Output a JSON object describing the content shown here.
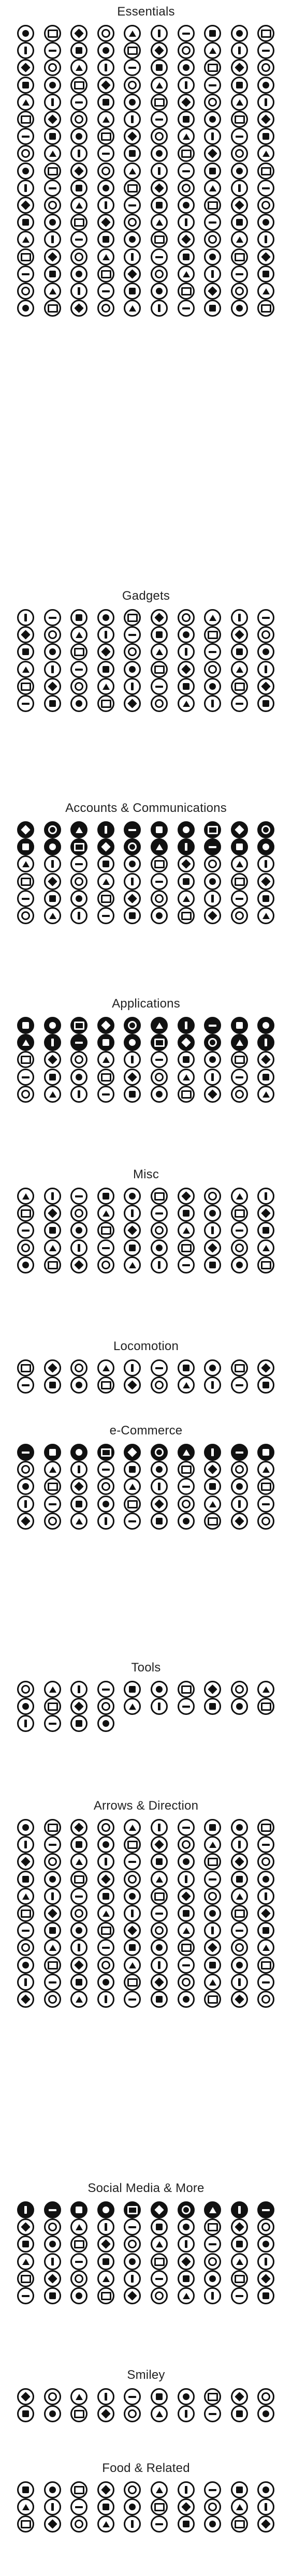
{
  "page": {
    "background": "#ffffff",
    "ink": "#111111"
  },
  "sections": [
    {
      "title": "Essentials",
      "columns": 10,
      "count": 170
    },
    {
      "title": "Gadgets",
      "columns": 10,
      "count": 60
    },
    {
      "title": "Accounts & Communications",
      "columns": 10,
      "count": 60
    },
    {
      "title": "Applications",
      "columns": 10,
      "count": 50
    },
    {
      "title": "Misc",
      "columns": 10,
      "count": 50
    },
    {
      "title": "Locomotion",
      "columns": 10,
      "count": 20
    },
    {
      "title": "e-Commerce",
      "columns": 10,
      "count": 50
    },
    {
      "title": "Tools",
      "columns": 10,
      "count": 24
    },
    {
      "title": "Arrows & Direction",
      "columns": 10,
      "count": 110
    },
    {
      "title": "Social Media & More",
      "columns": 10,
      "count": 60
    },
    {
      "title": "Smiley",
      "columns": 10,
      "count": 20
    },
    {
      "title": "Food & Related",
      "columns": 10,
      "count": 30
    }
  ]
}
